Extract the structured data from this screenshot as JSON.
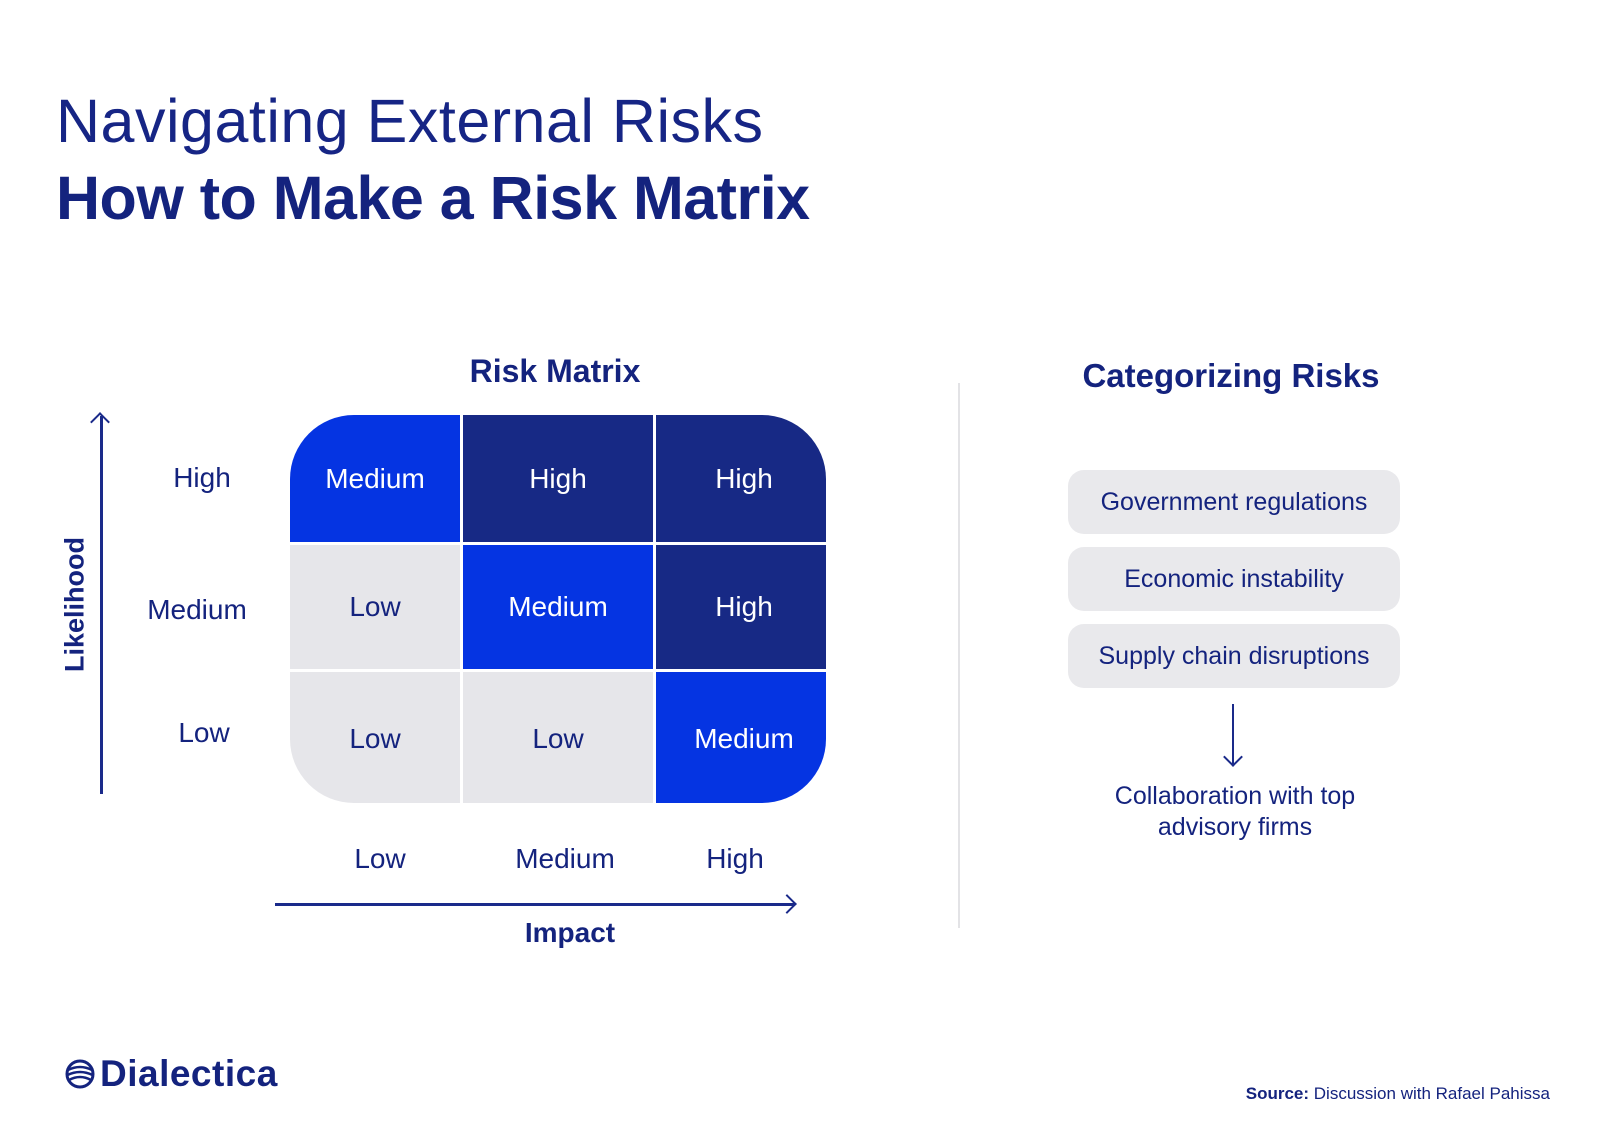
{
  "header": {
    "title": "Navigating External Risks",
    "subtitle": "How to Make a Risk Matrix"
  },
  "matrix": {
    "title": "Risk Matrix",
    "y_axis_title": "Likelihood",
    "x_axis_title": "Impact",
    "row_labels": [
      "High",
      "Medium",
      "Low"
    ],
    "col_labels": [
      "Low",
      "Medium",
      "High"
    ],
    "cells": [
      [
        "Medium",
        "High",
        "High"
      ],
      [
        "Low",
        "Medium",
        "High"
      ],
      [
        "Low",
        "Low",
        "Medium"
      ]
    ],
    "colors": {
      "low": "#e6e6ea",
      "medium": "#0534e2",
      "high": "#172985"
    }
  },
  "categorizing": {
    "title": "Categorizing Risks",
    "items": [
      "Government regulations",
      "Economic instability",
      "Supply chain disruptions"
    ],
    "result": "Collaboration with top advisory firms"
  },
  "footer": {
    "logo_text": "Dialectica",
    "source_label": "Source:",
    "source_text": " Discussion with Rafael Pahissa"
  }
}
